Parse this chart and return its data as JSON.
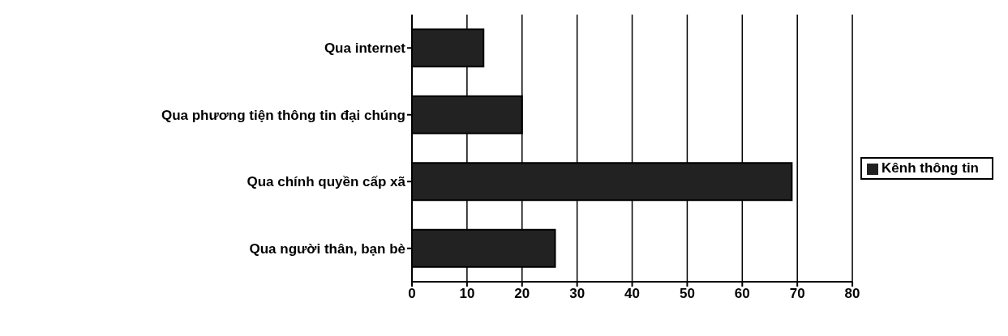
{
  "chart_data": {
    "type": "bar",
    "orientation": "horizontal",
    "categories": [
      "Qua internet",
      "Qua phương tiện thông tin đại chúng",
      "Qua chính quyền cấp xã",
      "Qua người thân, bạn bè"
    ],
    "series": [
      {
        "name": "Kênh thông tin",
        "color": "#222222",
        "values": [
          13,
          20,
          69,
          26
        ]
      }
    ],
    "xlim": [
      0,
      80
    ],
    "xticks": [
      0,
      10,
      20,
      30,
      40,
      50,
      60,
      70,
      80
    ],
    "grid": "x",
    "legend": "right"
  }
}
